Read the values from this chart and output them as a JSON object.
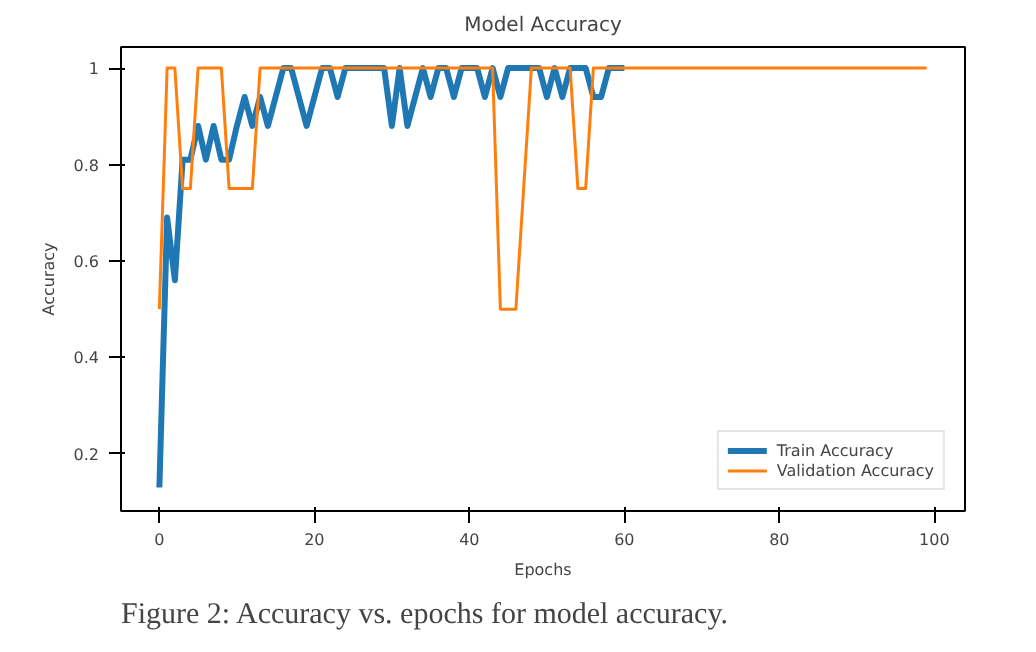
{
  "chart_data": {
    "type": "line",
    "title": "Model Accuracy",
    "xlabel": "Epochs",
    "ylabel": "Accuracy",
    "x": [
      0,
      1,
      2,
      3,
      4,
      5,
      6,
      7,
      8,
      9,
      10,
      11,
      12,
      13,
      14,
      15,
      16,
      17,
      18,
      19,
      20,
      21,
      22,
      23,
      24,
      25,
      26,
      27,
      28,
      29,
      30,
      31,
      32,
      33,
      34,
      35,
      36,
      37,
      38,
      39,
      40,
      41,
      42,
      43,
      44,
      45,
      46,
      47,
      48,
      49,
      50,
      51,
      52,
      53,
      54,
      55,
      56,
      57,
      58,
      59,
      60,
      61,
      62,
      63,
      64,
      65,
      66,
      67,
      68,
      69,
      70,
      71,
      72,
      73,
      74,
      75,
      76,
      77,
      78,
      79,
      80,
      81,
      82,
      83,
      84,
      85,
      86,
      87,
      88,
      89,
      90,
      91,
      92,
      93,
      94,
      95,
      96,
      97,
      98,
      99
    ],
    "series": [
      {
        "name": "Train Accuracy",
        "color": "#1f77b4",
        "values": [
          0.13,
          0.69,
          0.56,
          0.81,
          0.81,
          0.88,
          0.81,
          0.88,
          0.81,
          0.81,
          0.88,
          0.94,
          0.88,
          0.94,
          0.88,
          0.94,
          1,
          1,
          0.94,
          0.88,
          0.94,
          1,
          1,
          0.94,
          1,
          1,
          1,
          1,
          1,
          1,
          0.88,
          1,
          0.88,
          0.94,
          1,
          0.94,
          1,
          1,
          0.94,
          1,
          1,
          1,
          0.94,
          1,
          0.94,
          1,
          1,
          1,
          1,
          1,
          0.94,
          1,
          0.94,
          1,
          1,
          1,
          0.94,
          0.94,
          1,
          1,
          1,
          null,
          null,
          null,
          null,
          null,
          null,
          null,
          null,
          null,
          null,
          null,
          null,
          null,
          null,
          null,
          null,
          null,
          null,
          null,
          null,
          null,
          null,
          null,
          null,
          null,
          null,
          null,
          null,
          null,
          null,
          null,
          null,
          null,
          null,
          null,
          null,
          null,
          null,
          null
        ]
      },
      {
        "name": "Validation Accuracy",
        "color": "#ff7f0e",
        "values": [
          0.5,
          1,
          1,
          0.75,
          0.75,
          1,
          1,
          1,
          1,
          0.75,
          0.75,
          0.75,
          0.75,
          1,
          1,
          1,
          1,
          1,
          1,
          1,
          1,
          1,
          1,
          1,
          1,
          1,
          1,
          1,
          1,
          1,
          1,
          1,
          1,
          1,
          1,
          1,
          1,
          1,
          1,
          1,
          1,
          1,
          1,
          1,
          0.5,
          0.5,
          0.5,
          0.75,
          1,
          1,
          1,
          1,
          1,
          1,
          0.75,
          0.75,
          1,
          1,
          1,
          1,
          1,
          1,
          1,
          1,
          1,
          1,
          1,
          1,
          1,
          1,
          1,
          1,
          1,
          1,
          1,
          1,
          1,
          1,
          1,
          1,
          1,
          1,
          1,
          1,
          1,
          1,
          1,
          1,
          1,
          1,
          1,
          1,
          1,
          1,
          1,
          1,
          1,
          1,
          1,
          1
        ]
      }
    ],
    "xlim": [
      -4.95,
      103.95
    ],
    "ylim": [
      0.08125,
      1.04375
    ],
    "xticks": [
      0,
      20,
      40,
      60,
      80,
      100
    ],
    "yticks": [
      0.2,
      0.4,
      0.6,
      0.8,
      1.0
    ],
    "grid": false,
    "legend": "bottom right",
    "annotations": [
      "Figure 2: Accuracy vs. epochs for model accuracy."
    ]
  }
}
